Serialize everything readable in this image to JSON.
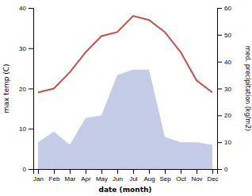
{
  "chart_data": {
    "type": "line",
    "categories": [
      "Jan",
      "Feb",
      "Mar",
      "Apr",
      "May",
      "Jun",
      "Jul",
      "Aug",
      "Sep",
      "Oct",
      "Nov",
      "Dec"
    ],
    "xlabel": "date (month)",
    "ylabel": "max temp (C)",
    "y2label": "med. precipitation (kg/m2)",
    "series": [
      {
        "type": "area",
        "axis": "y2",
        "color": "#c5cce8",
        "values": [
          10,
          14,
          9,
          19,
          20,
          35,
          37,
          37,
          12,
          10,
          10,
          9
        ]
      },
      {
        "type": "line",
        "color": "#c0504d",
        "values": [
          19,
          20,
          24,
          29,
          33,
          34,
          38,
          37,
          34,
          29,
          22,
          19
        ]
      }
    ],
    "ylim": [
      0,
      40
    ],
    "yticks": [
      0,
      10,
      20,
      30,
      40
    ],
    "y2lim": [
      0,
      60
    ],
    "y2ticks": [
      0,
      10,
      20,
      30,
      40,
      50,
      60
    ],
    "grid": false
  }
}
